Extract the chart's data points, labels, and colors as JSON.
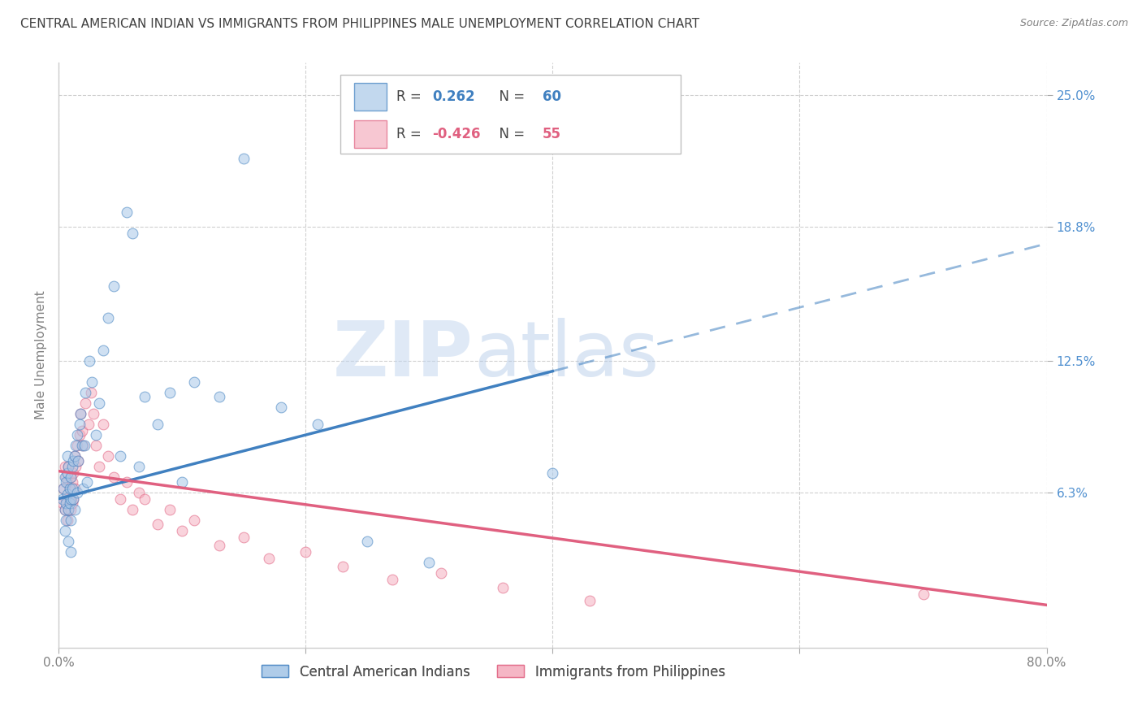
{
  "title": "CENTRAL AMERICAN INDIAN VS IMMIGRANTS FROM PHILIPPINES MALE UNEMPLOYMENT CORRELATION CHART",
  "source": "Source: ZipAtlas.com",
  "ylabel": "Male Unemployment",
  "xlim": [
    0.0,
    0.8
  ],
  "ylim": [
    -0.01,
    0.265
  ],
  "yticks": [
    0.063,
    0.125,
    0.188,
    0.25
  ],
  "ytick_labels": [
    "6.3%",
    "12.5%",
    "18.8%",
    "25.0%"
  ],
  "xtick_positions": [
    0.0,
    0.2,
    0.4,
    0.6,
    0.8
  ],
  "xtick_labels": [
    "0.0%",
    "",
    "",
    "",
    "80.0%"
  ],
  "watermark_zip": "ZIP",
  "watermark_atlas": "atlas",
  "blue_label": "Central American Indians",
  "pink_label": "Immigrants from Philippines",
  "blue_r_label": "R =  0.262",
  "blue_n_label": "N = 60",
  "pink_r_label": "R = -0.426",
  "pink_n_label": "N = 55",
  "blue_r_value": "0.262",
  "pink_r_value": "-0.426",
  "blue_n_value": "60",
  "pink_n_value": "55",
  "blue_color": "#a8c8e8",
  "pink_color": "#f5b0c0",
  "blue_line_color": "#4080c0",
  "pink_line_color": "#e06080",
  "background_color": "#ffffff",
  "grid_color": "#d0d0d0",
  "title_color": "#404040",
  "source_color": "#808080",
  "ytick_color": "#5090d0",
  "xtick_color": "#808080",
  "ylabel_color": "#808080",
  "title_fontsize": 11,
  "axis_label_fontsize": 11,
  "tick_fontsize": 11,
  "legend_fontsize": 12,
  "blue_scatter_x": [
    0.003,
    0.004,
    0.005,
    0.005,
    0.005,
    0.006,
    0.006,
    0.006,
    0.007,
    0.007,
    0.007,
    0.008,
    0.008,
    0.008,
    0.009,
    0.009,
    0.01,
    0.01,
    0.01,
    0.01,
    0.011,
    0.011,
    0.012,
    0.012,
    0.013,
    0.013,
    0.014,
    0.015,
    0.015,
    0.016,
    0.017,
    0.018,
    0.019,
    0.02,
    0.021,
    0.022,
    0.023,
    0.025,
    0.027,
    0.03,
    0.033,
    0.036,
    0.04,
    0.045,
    0.05,
    0.055,
    0.06,
    0.065,
    0.07,
    0.08,
    0.09,
    0.1,
    0.11,
    0.13,
    0.15,
    0.18,
    0.21,
    0.25,
    0.3,
    0.4
  ],
  "blue_scatter_y": [
    0.06,
    0.065,
    0.055,
    0.07,
    0.045,
    0.058,
    0.068,
    0.05,
    0.062,
    0.072,
    0.08,
    0.055,
    0.075,
    0.04,
    0.065,
    0.058,
    0.06,
    0.07,
    0.05,
    0.035,
    0.075,
    0.065,
    0.078,
    0.06,
    0.08,
    0.055,
    0.085,
    0.09,
    0.063,
    0.078,
    0.095,
    0.1,
    0.085,
    0.065,
    0.085,
    0.11,
    0.068,
    0.125,
    0.115,
    0.09,
    0.105,
    0.13,
    0.145,
    0.16,
    0.08,
    0.195,
    0.185,
    0.075,
    0.108,
    0.095,
    0.11,
    0.068,
    0.115,
    0.108,
    0.22,
    0.103,
    0.095,
    0.04,
    0.03,
    0.072
  ],
  "pink_scatter_x": [
    0.003,
    0.004,
    0.005,
    0.005,
    0.006,
    0.006,
    0.007,
    0.007,
    0.008,
    0.008,
    0.009,
    0.009,
    0.01,
    0.01,
    0.011,
    0.011,
    0.012,
    0.012,
    0.013,
    0.013,
    0.014,
    0.015,
    0.016,
    0.017,
    0.018,
    0.019,
    0.02,
    0.022,
    0.024,
    0.026,
    0.028,
    0.03,
    0.033,
    0.036,
    0.04,
    0.045,
    0.05,
    0.055,
    0.06,
    0.065,
    0.07,
    0.08,
    0.09,
    0.1,
    0.11,
    0.13,
    0.15,
    0.17,
    0.2,
    0.23,
    0.27,
    0.31,
    0.36,
    0.43,
    0.7
  ],
  "pink_scatter_y": [
    0.058,
    0.065,
    0.055,
    0.075,
    0.06,
    0.07,
    0.05,
    0.068,
    0.055,
    0.075,
    0.065,
    0.06,
    0.07,
    0.055,
    0.068,
    0.058,
    0.072,
    0.06,
    0.065,
    0.08,
    0.075,
    0.085,
    0.078,
    0.09,
    0.1,
    0.092,
    0.085,
    0.105,
    0.095,
    0.11,
    0.1,
    0.085,
    0.075,
    0.095,
    0.08,
    0.07,
    0.06,
    0.068,
    0.055,
    0.063,
    0.06,
    0.048,
    0.055,
    0.045,
    0.05,
    0.038,
    0.042,
    0.032,
    0.035,
    0.028,
    0.022,
    0.025,
    0.018,
    0.012,
    0.015
  ],
  "blue_line_x_start": 0.0,
  "blue_line_x_solid_end": 0.4,
  "blue_line_x_end": 0.8,
  "blue_line_y_start": 0.06,
  "blue_line_y_solid_end": 0.12,
  "blue_line_y_end": 0.18,
  "pink_line_x_start": 0.0,
  "pink_line_x_end": 0.8,
  "pink_line_y_start": 0.073,
  "pink_line_y_end": 0.01
}
